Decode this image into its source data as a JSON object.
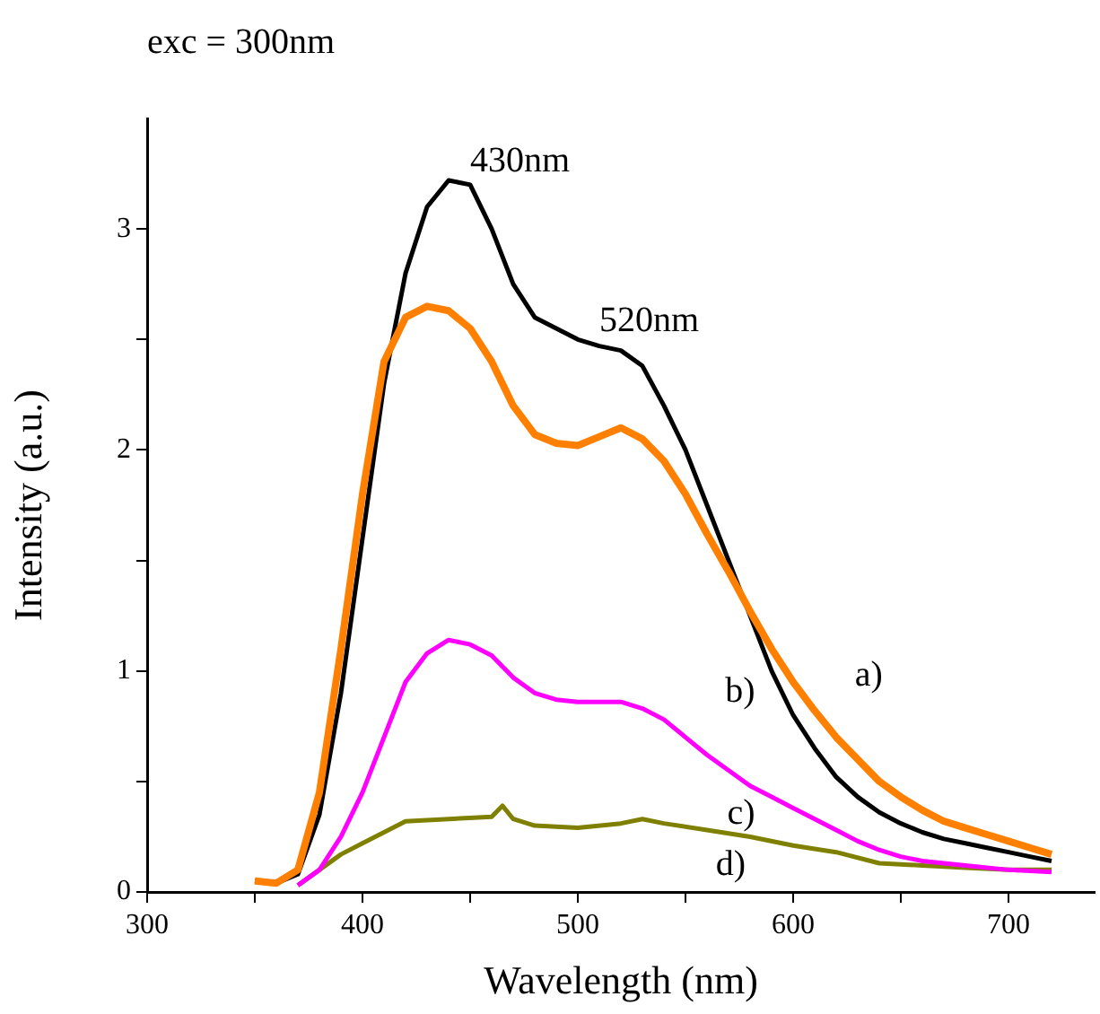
{
  "chart_data": {
    "type": "line",
    "title": "exc = 300nm",
    "xlabel": "Wavelength (nm)",
    "ylabel": "Intensity (a.u.)",
    "xlim": [
      300,
      740
    ],
    "xticks": [
      300,
      {
        "value": 350,
        "label": null
      },
      400,
      {
        "value": 450,
        "label": null
      },
      500,
      {
        "value": 550,
        "label": null
      },
      600,
      {
        "value": 650,
        "label": null
      },
      700
    ],
    "ylim": [
      0,
      3.5
    ],
    "yticks": [
      0,
      {
        "value": 0.5,
        "label": null
      },
      1,
      {
        "value": 1.5,
        "label": null
      },
      2,
      {
        "value": 2.5,
        "label": null
      },
      3
    ],
    "grid": false,
    "legend": false,
    "marker": "none",
    "line_style": "solid",
    "series": [
      {
        "name": "a)",
        "color": "#ff8000",
        "x": [
          350,
          360,
          370,
          380,
          390,
          400,
          410,
          420,
          430,
          440,
          450,
          460,
          470,
          480,
          490,
          500,
          510,
          520,
          530,
          540,
          550,
          560,
          570,
          580,
          590,
          600,
          610,
          620,
          630,
          640,
          650,
          660,
          670,
          680,
          690,
          700,
          710,
          720
        ],
        "values": [
          0.05,
          0.04,
          0.1,
          0.45,
          1.1,
          1.8,
          2.4,
          2.6,
          2.65,
          2.63,
          2.55,
          2.4,
          2.2,
          2.07,
          2.03,
          2.02,
          2.06,
          2.1,
          2.05,
          1.95,
          1.8,
          1.62,
          1.45,
          1.27,
          1.1,
          0.95,
          0.82,
          0.7,
          0.6,
          0.5,
          0.43,
          0.37,
          0.32,
          0.29,
          0.26,
          0.23,
          0.2,
          0.17
        ]
      },
      {
        "name": "b)",
        "color": "#000000",
        "x": [
          350,
          360,
          370,
          380,
          390,
          400,
          410,
          420,
          430,
          440,
          450,
          460,
          470,
          480,
          490,
          500,
          510,
          520,
          530,
          540,
          550,
          560,
          570,
          580,
          590,
          600,
          610,
          620,
          630,
          640,
          650,
          660,
          670,
          680,
          690,
          700,
          710,
          720
        ],
        "values": [
          0.05,
          0.04,
          0.08,
          0.35,
          0.9,
          1.6,
          2.3,
          2.8,
          3.1,
          3.22,
          3.2,
          3.0,
          2.75,
          2.6,
          2.55,
          2.5,
          2.47,
          2.45,
          2.38,
          2.2,
          2.0,
          1.75,
          1.5,
          1.25,
          1.0,
          0.8,
          0.65,
          0.52,
          0.43,
          0.36,
          0.31,
          0.27,
          0.24,
          0.22,
          0.2,
          0.18,
          0.16,
          0.14
        ]
      },
      {
        "name": "c)",
        "color": "#ff00ff",
        "x": [
          370,
          380,
          390,
          400,
          410,
          420,
          430,
          440,
          450,
          460,
          470,
          480,
          490,
          500,
          510,
          520,
          530,
          540,
          550,
          560,
          570,
          580,
          590,
          600,
          610,
          620,
          630,
          640,
          650,
          660,
          670,
          680,
          690,
          700,
          720
        ],
        "values": [
          0.03,
          0.1,
          0.25,
          0.45,
          0.7,
          0.95,
          1.08,
          1.14,
          1.12,
          1.07,
          0.97,
          0.9,
          0.87,
          0.86,
          0.86,
          0.86,
          0.83,
          0.78,
          0.7,
          0.62,
          0.55,
          0.48,
          0.43,
          0.38,
          0.33,
          0.28,
          0.23,
          0.19,
          0.16,
          0.14,
          0.13,
          0.12,
          0.11,
          0.1,
          0.09
        ]
      },
      {
        "name": "d)",
        "color": "#808000",
        "x": [
          370,
          380,
          390,
          400,
          410,
          420,
          440,
          460,
          465,
          470,
          480,
          500,
          520,
          530,
          540,
          560,
          580,
          600,
          620,
          640,
          660,
          680,
          700,
          720
        ],
        "values": [
          0.03,
          0.1,
          0.17,
          0.22,
          0.27,
          0.32,
          0.33,
          0.34,
          0.39,
          0.33,
          0.3,
          0.29,
          0.31,
          0.33,
          0.31,
          0.28,
          0.25,
          0.21,
          0.18,
          0.13,
          0.12,
          0.11,
          0.1,
          0.1
        ]
      }
    ],
    "annotations": [
      {
        "text": "430nm",
        "x": 440,
        "y": 3.22
      },
      {
        "text": "520nm",
        "x": 500,
        "y": 2.5
      }
    ]
  }
}
